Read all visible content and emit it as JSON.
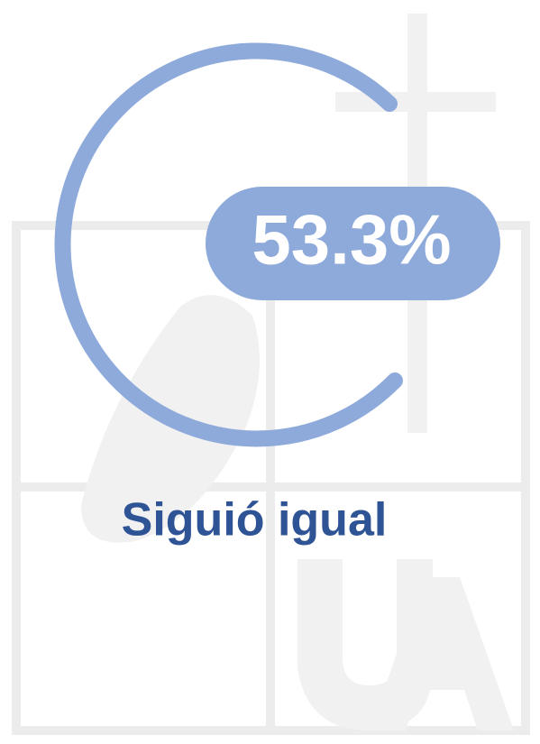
{
  "stat": {
    "value_label": "53.3%",
    "caption": "Siguió igual"
  }
}
